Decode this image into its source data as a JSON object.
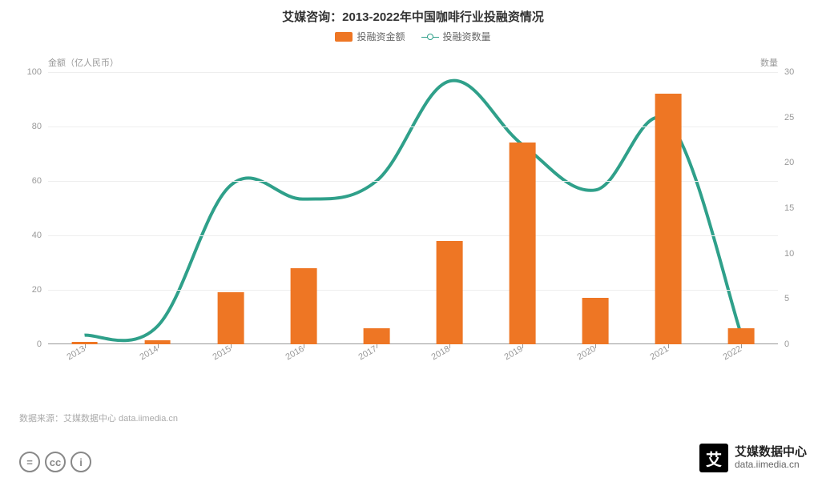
{
  "title": "艾媒咨询：2013-2022年中国咖啡行业投融资情况",
  "legend": {
    "bar": "投融资金额",
    "line": "投融资数量"
  },
  "chart": {
    "type": "bar+line",
    "background_color": "#ffffff",
    "grid_color": "#eeeeee",
    "axis_color": "#999999",
    "bar_color": "#ee7624",
    "line_color": "#2fa08a",
    "bar_width_pct": 3.6,
    "categories": [
      "2013",
      "2014",
      "2015",
      "2016",
      "2017",
      "2018",
      "2019",
      "2020",
      "2021",
      "2022"
    ],
    "bar_values": [
      1,
      1.5,
      19,
      28,
      6,
      38,
      74,
      17,
      92,
      6
    ],
    "line_values": [
      1,
      2,
      17.5,
      16,
      18,
      29,
      22,
      17,
      24.5,
      1
    ],
    "y_left": {
      "title": "金额（亿人民币）",
      "min": 0,
      "max": 100,
      "step": 20,
      "labels": [
        "0",
        "20",
        "40",
        "60",
        "80",
        "100"
      ]
    },
    "y_right": {
      "title": "数量",
      "min": 0,
      "max": 30,
      "step": 5,
      "labels": [
        "0",
        "5",
        "10",
        "15",
        "20",
        "25",
        "30"
      ]
    },
    "title_fontsize": 15,
    "label_fontsize": 11,
    "x_label_rotation_deg": -30
  },
  "source": "数据来源：艾媒数据中心 data.iimedia.cn",
  "cc_icons": [
    "=",
    "cc",
    "i"
  ],
  "watermark": {
    "logo_text": "艾",
    "cn": "艾媒数据中心",
    "en": "data.iimedia.cn"
  }
}
